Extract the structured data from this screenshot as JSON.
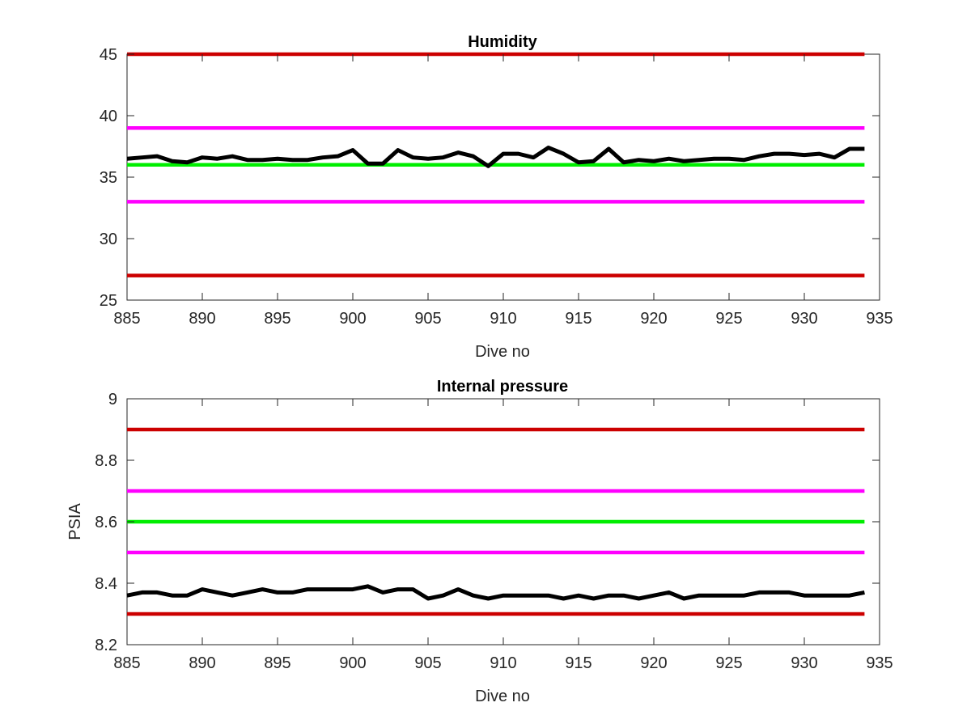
{
  "chart_data": [
    {
      "type": "line",
      "title": "Humidity",
      "xlabel": "Dive no",
      "ylabel": "",
      "xlim": [
        885,
        935
      ],
      "ylim": [
        25,
        45
      ],
      "xticks": [
        885,
        890,
        895,
        900,
        905,
        910,
        915,
        920,
        925,
        930,
        935
      ],
      "yticks": [
        25,
        30,
        35,
        40,
        45
      ],
      "grid": false,
      "thresholds": [
        {
          "value": 45,
          "color": "#cc0000"
        },
        {
          "value": 39,
          "color": "#ff00ff"
        },
        {
          "value": 36,
          "color": "#00ee00"
        },
        {
          "value": 33,
          "color": "#ff00ff"
        },
        {
          "value": 27,
          "color": "#cc0000"
        }
      ],
      "series": [
        {
          "color": "#000000",
          "x": [
            885,
            886,
            887,
            888,
            889,
            890,
            891,
            892,
            893,
            894,
            895,
            896,
            897,
            898,
            899,
            900,
            901,
            902,
            903,
            904,
            905,
            906,
            907,
            908,
            909,
            910,
            911,
            912,
            913,
            914,
            915,
            916,
            917,
            918,
            919,
            920,
            921,
            922,
            923,
            924,
            925,
            926,
            927,
            928,
            929,
            930,
            931,
            932,
            933,
            934
          ],
          "y": [
            36.5,
            36.6,
            36.7,
            36.3,
            36.2,
            36.6,
            36.5,
            36.7,
            36.4,
            36.4,
            36.5,
            36.4,
            36.4,
            36.6,
            36.7,
            37.2,
            36.1,
            36.1,
            37.2,
            36.6,
            36.5,
            36.6,
            37.0,
            36.7,
            35.9,
            36.9,
            36.9,
            36.6,
            37.4,
            36.9,
            36.2,
            36.3,
            37.3,
            36.2,
            36.4,
            36.3,
            36.5,
            36.3,
            36.4,
            36.5,
            36.5,
            36.4,
            36.7,
            36.9,
            36.9,
            36.8,
            36.9,
            36.6,
            37.3,
            37.3
          ]
        }
      ]
    },
    {
      "type": "line",
      "title": "Internal pressure",
      "xlabel": "Dive no",
      "ylabel": "PSIA",
      "xlim": [
        885,
        935
      ],
      "ylim": [
        8.2,
        9
      ],
      "xticks": [
        885,
        890,
        895,
        900,
        905,
        910,
        915,
        920,
        925,
        930,
        935
      ],
      "yticks": [
        8.2,
        8.4,
        8.6,
        8.8,
        9
      ],
      "grid": false,
      "thresholds": [
        {
          "value": 8.9,
          "color": "#cc0000"
        },
        {
          "value": 8.7,
          "color": "#ff00ff"
        },
        {
          "value": 8.6,
          "color": "#00ee00"
        },
        {
          "value": 8.5,
          "color": "#ff00ff"
        },
        {
          "value": 8.3,
          "color": "#cc0000"
        }
      ],
      "series": [
        {
          "color": "#000000",
          "x": [
            885,
            886,
            887,
            888,
            889,
            890,
            891,
            892,
            893,
            894,
            895,
            896,
            897,
            898,
            899,
            900,
            901,
            902,
            903,
            904,
            905,
            906,
            907,
            908,
            909,
            910,
            911,
            912,
            913,
            914,
            915,
            916,
            917,
            918,
            919,
            920,
            921,
            922,
            923,
            924,
            925,
            926,
            927,
            928,
            929,
            930,
            931,
            932,
            933,
            934
          ],
          "y": [
            8.36,
            8.37,
            8.37,
            8.36,
            8.36,
            8.38,
            8.37,
            8.36,
            8.37,
            8.38,
            8.37,
            8.37,
            8.38,
            8.38,
            8.38,
            8.38,
            8.39,
            8.37,
            8.38,
            8.38,
            8.35,
            8.36,
            8.38,
            8.36,
            8.35,
            8.36,
            8.36,
            8.36,
            8.36,
            8.35,
            8.36,
            8.35,
            8.36,
            8.36,
            8.35,
            8.36,
            8.37,
            8.35,
            8.36,
            8.36,
            8.36,
            8.36,
            8.37,
            8.37,
            8.37,
            8.36,
            8.36,
            8.36,
            8.36,
            8.37
          ]
        }
      ]
    }
  ]
}
